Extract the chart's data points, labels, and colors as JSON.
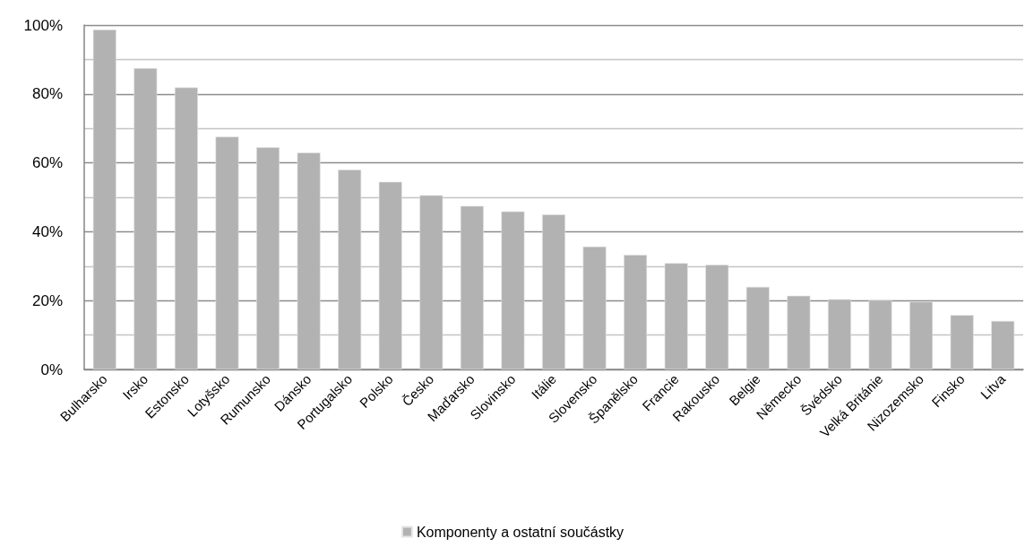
{
  "chart_data": {
    "type": "bar",
    "categories": [
      "Bulharsko",
      "Irsko",
      "Estonsko",
      "Lotyšsko",
      "Rumunsko",
      "Dánsko",
      "Portugalsko",
      "Polsko",
      "Česko",
      "Maďarsko",
      "Slovinsko",
      "Itálie",
      "Slovensko",
      "Španělsko",
      "Francie",
      "Rakousko",
      "Belgie",
      "Německo",
      "Švédsko",
      "Velká Británie",
      "Nizozemsko",
      "Finsko",
      "Litva"
    ],
    "series": [
      {
        "name": "Komponenty a ostatní součástky",
        "color": "#b2b2b2",
        "values": [
          98.7,
          87.5,
          81.9,
          67.6,
          64.5,
          63.0,
          58.0,
          54.5,
          50.6,
          47.5,
          45.9,
          45.0,
          35.7,
          33.3,
          30.9,
          30.4,
          24.0,
          21.4,
          20.4,
          20.2,
          19.7,
          15.8,
          14.1
        ]
      }
    ],
    "ylim": [
      0,
      100
    ],
    "yticks": [
      {
        "value": 0,
        "label": "0%"
      },
      {
        "value": 10,
        "label": null
      },
      {
        "value": 20,
        "label": "20%"
      },
      {
        "value": 30,
        "label": null
      },
      {
        "value": 40,
        "label": "40%"
      },
      {
        "value": 50,
        "label": null
      },
      {
        "value": 60,
        "label": "60%"
      },
      {
        "value": 70,
        "label": null
      },
      {
        "value": 80,
        "label": "80%"
      },
      {
        "value": 90,
        "label": null
      },
      {
        "value": 100,
        "label": "100%"
      }
    ],
    "grid": "y",
    "legend": "bottom"
  }
}
